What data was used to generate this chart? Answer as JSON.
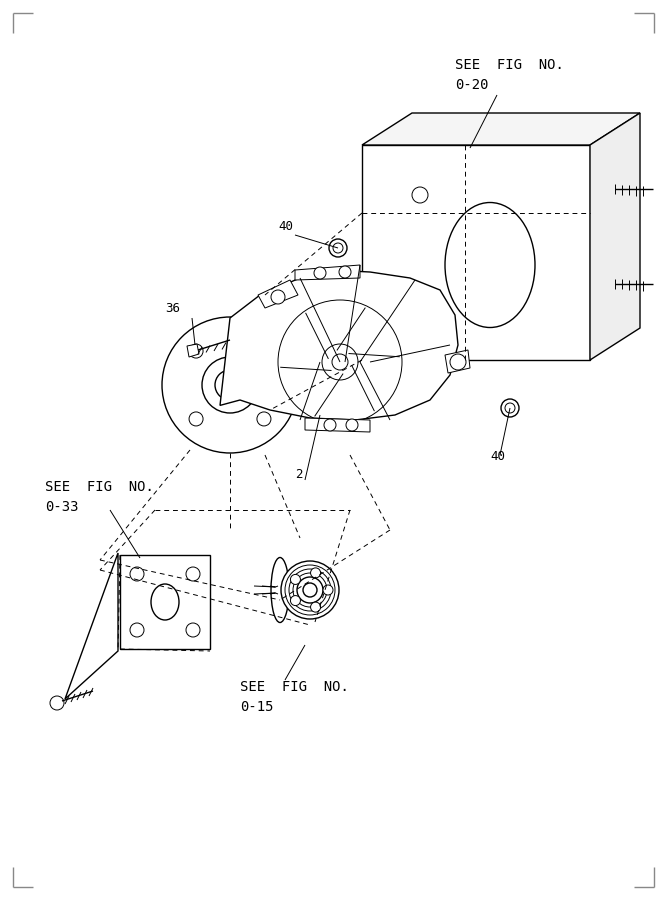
{
  "bg_color": "#ffffff",
  "line_color": "#000000",
  "text_color": "#000000",
  "border_tick_color": "#888888",
  "font_family": "monospace",
  "labels": {
    "see_fig_20_line1": "SEE FIG NO.",
    "see_fig_20_line2": "0-20",
    "see_fig_33_line1": "SEE FIG NO.",
    "see_fig_33_line2": "0-33",
    "see_fig_15_line1": "SEE FIG NO.",
    "see_fig_15_line2": "0-15",
    "part_2": "2",
    "part_36": "36",
    "part_40a": "40",
    "part_40b": "40"
  }
}
